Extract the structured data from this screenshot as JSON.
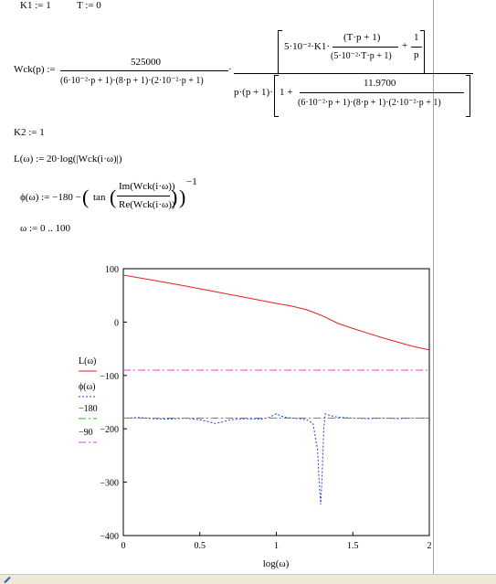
{
  "definitions": {
    "k1": "K1 := 1",
    "t": "T := 0",
    "k2": "K2 := 1",
    "wck_lhs": "Wck(p) :=",
    "wck_num1": "525000",
    "wck_den1": "(6·10⁻²·p + 1)·(8·p + 1)·(2·10⁻²·p + 1)",
    "wck_big_left": "5·10⁻²·K1·",
    "wck_tp1": "(T·p + 1)",
    "wck_den_tp": "(5·10⁻²·T·p + 1)",
    "wck_plus": "+",
    "wck_one": "1",
    "wck_p": "p",
    "wck_pp": "p·(p + 1)·",
    "wck_one_plus": "1 +",
    "wck_11970": "11.9700",
    "wck_den2": "(6·10⁻²·p + 1)·(8·p + 1)·(2·10⁻²·p + 1)",
    "l_def": "L(ω) := 20·log(|Wck(i·ω)|)",
    "phi_lhs": "ϕ(ω) := −180 −",
    "phi_tan": "tan",
    "phi_im": "Im(Wck(i·ω))",
    "phi_re": "Re(Wck(i·ω))",
    "phi_exp": "−1",
    "omega": "ω := 0 .. 100"
  },
  "chart_data": {
    "type": "line",
    "xlabel": "log(ω)",
    "ylabel": "",
    "xlim": [
      0,
      2
    ],
    "ylim": [
      -400,
      100
    ],
    "x_ticks": [
      "0",
      "0.5",
      "1",
      "1.5",
      "2"
    ],
    "y_ticks": [
      "100",
      "0",
      "−100",
      "−200",
      "−300",
      "−400"
    ],
    "legend_placement": "left",
    "legend": [
      "L(ω)",
      "ϕ(ω)",
      "−180",
      "−90"
    ],
    "series": [
      {
        "name": "L(ω)",
        "color": "#e02020",
        "style": "solid",
        "x": [
          0,
          0.2,
          0.4,
          0.6,
          0.8,
          1.0,
          1.1,
          1.2,
          1.3,
          1.4,
          1.5,
          1.6,
          1.7,
          1.8,
          1.9,
          2.0
        ],
        "y": [
          88,
          78,
          68,
          57,
          46,
          35,
          30,
          23,
          12,
          -2,
          -12,
          -21,
          -30,
          -38,
          -46,
          -52
        ]
      },
      {
        "name": "ϕ(ω)",
        "color": "#2040d0",
        "style": "dotted",
        "x": [
          0,
          0.1,
          0.2,
          0.3,
          0.4,
          0.5,
          0.55,
          0.6,
          0.65,
          0.7,
          0.8,
          0.9,
          0.95,
          1.0,
          1.05,
          1.1,
          1.15,
          1.2,
          1.24,
          1.27,
          1.28,
          1.29,
          1.3,
          1.31,
          1.32,
          1.35,
          1.4,
          1.5,
          1.6,
          1.7,
          1.8,
          1.9,
          2.0
        ],
        "y": [
          -180,
          -179,
          -181,
          -182,
          -180,
          -183,
          -186,
          -190,
          -187,
          -183,
          -181,
          -182,
          -179,
          -172,
          -178,
          -180,
          -181,
          -183,
          -190,
          -240,
          -300,
          -342,
          -280,
          -200,
          -172,
          -175,
          -178,
          -180,
          -181,
          -180,
          -181,
          -180,
          -180
        ]
      },
      {
        "name": "−180",
        "color": "#20c020",
        "style": "dashdot",
        "x": [
          0,
          2
        ],
        "y": [
          -180,
          -180
        ]
      },
      {
        "name": "−90",
        "color": "#e040e0",
        "style": "dashdot",
        "x": [
          0,
          2
        ],
        "y": [
          -90,
          -90
        ]
      }
    ]
  }
}
